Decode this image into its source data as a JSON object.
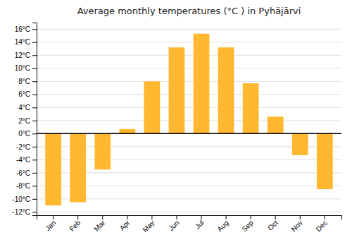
{
  "chart_data": {
    "type": "bar",
    "title": "Average monthly temperatures (°C ) in Pyhäjärvi",
    "categories": [
      "Jan",
      "Feb",
      "Mar",
      "Apr",
      "May",
      "Jun",
      "Jul",
      "Aug",
      "Sep",
      "Oct",
      "Nov",
      "Dec"
    ],
    "values": [
      -11,
      -10.5,
      -5.5,
      0.7,
      8.0,
      13.2,
      15.3,
      13.2,
      7.7,
      2.6,
      -3.3,
      -8.5
    ],
    "color": "#FFB830",
    "ylim": [
      -12.5,
      17
    ],
    "yticks": [
      {
        "value": -12,
        "label": "-12°C"
      },
      {
        "value": -10,
        "label": "-10°C"
      },
      {
        "value": -8,
        "label": "-8°C"
      },
      {
        "value": -6,
        "label": "-6°C"
      },
      {
        "value": -4,
        "label": "-4°C"
      },
      {
        "value": -2,
        "label": "-2°C"
      },
      {
        "value": 0,
        "label": "0°C"
      },
      {
        "value": 2,
        "label": "2°C"
      },
      {
        "value": 4,
        "label": "4°C"
      },
      {
        "value": 6,
        "label": "6°C"
      },
      {
        "value": 8,
        "label": "8°C"
      },
      {
        "value": 10,
        "label": "10°C"
      },
      {
        "value": 12,
        "label": "12°C"
      },
      {
        "value": 14,
        "label": "14°C"
      },
      {
        "value": 16,
        "label": "16°C"
      }
    ],
    "grid": true
  }
}
